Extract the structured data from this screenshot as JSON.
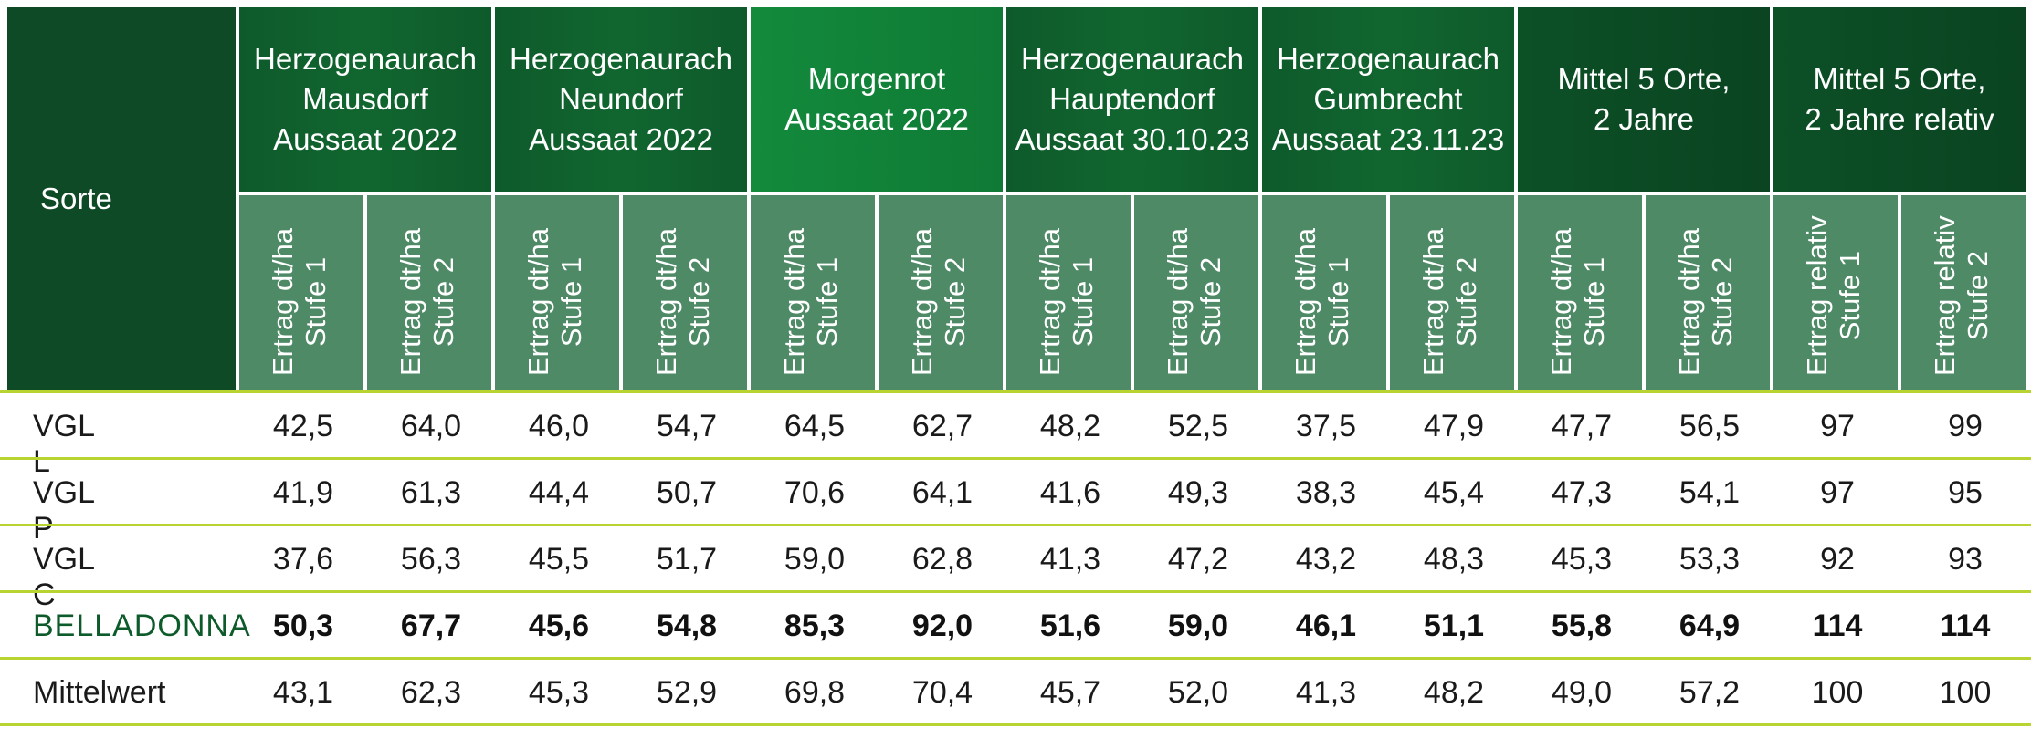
{
  "table": {
    "corner_label": "Sorte",
    "groups": [
      "Herzogenaurach\nMausdorf\nAussaat 2022",
      "Herzogenaurach\nNeundorf\nAussaat 2022",
      "Morgenrot\nAussaat 2022",
      "Herzogenaurach\nHauptendorf\nAussaat 30.10.23",
      "Herzogenaurach\nGumbrecht\nAussaat 23.11.23",
      "Mittel 5 Orte,\n2 Jahre",
      "Mittel 5 Orte,\n2 Jahre relativ"
    ],
    "subheaders": [
      "Ertrag dt/ha\nStufe 1",
      "Ertrag dt/ha\nStufe 2",
      "Ertrag dt/ha\nStufe 1",
      "Ertrag dt/ha\nStufe 2",
      "Ertrag dt/ha\nStufe 1",
      "Ertrag dt/ha\nStufe 2",
      "Ertrag dt/ha\nStufe 1",
      "Ertrag dt/ha\nStufe 2",
      "Ertrag dt/ha\nStufe 1",
      "Ertrag dt/ha\nStufe 2",
      "Ertrag dt/ha\nStufe 1",
      "Ertrag dt/ha\nStufe 2",
      "Ertrag relativ\nStufe 1",
      "Ertrag relativ\nStufe 2"
    ],
    "rows": [
      {
        "name": "VGL L",
        "bold": false,
        "values": [
          "42,5",
          "64,0",
          "46,0",
          "54,7",
          "64,5",
          "62,7",
          "48,2",
          "52,5",
          "37,5",
          "47,9",
          "47,7",
          "56,5",
          "97",
          "99"
        ]
      },
      {
        "name": "VGL P",
        "bold": false,
        "values": [
          "41,9",
          "61,3",
          "44,4",
          "50,7",
          "70,6",
          "64,1",
          "41,6",
          "49,3",
          "38,3",
          "45,4",
          "47,3",
          "54,1",
          "97",
          "95"
        ]
      },
      {
        "name": "VGL C",
        "bold": false,
        "values": [
          "37,6",
          "56,3",
          "45,5",
          "51,7",
          "59,0",
          "62,8",
          "41,3",
          "47,2",
          "43,2",
          "48,3",
          "45,3",
          "53,3",
          "92",
          "93"
        ]
      },
      {
        "name": "BELLADONNA",
        "bold": true,
        "values": [
          "50,3",
          "67,7",
          "45,6",
          "54,8",
          "85,3",
          "92,0",
          "51,6",
          "59,0",
          "46,1",
          "51,1",
          "55,8",
          "64,9",
          "114",
          "114"
        ]
      },
      {
        "name": "Mittelwert",
        "bold": false,
        "values": [
          "43,1",
          "62,3",
          "45,3",
          "52,9",
          "69,8",
          "70,4",
          "45,7",
          "52,0",
          "41,3",
          "48,2",
          "49,0",
          "57,2",
          "100",
          "100"
        ]
      }
    ],
    "colors": {
      "header_dark": "#0d4a25",
      "header_green": "#11662f",
      "subheader": "#4e8a66",
      "row_line": "#b8d432",
      "highlight_text": "#0d5a2a"
    }
  }
}
